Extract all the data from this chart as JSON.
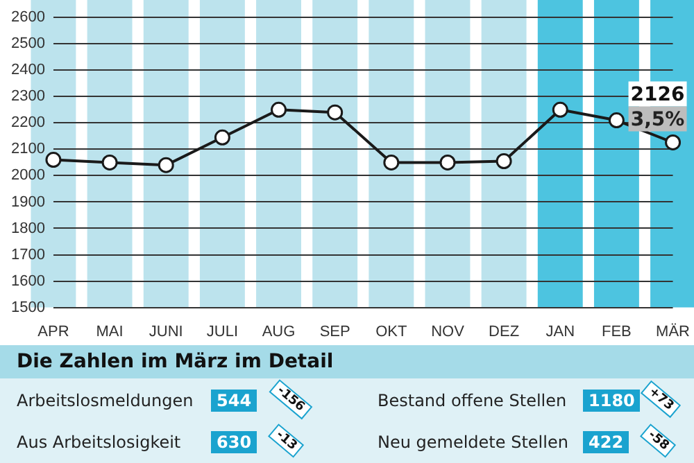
{
  "chart_data": {
    "type": "line",
    "categories": [
      "APR",
      "MAI",
      "JUNI",
      "JULI",
      "AUG",
      "SEP",
      "OKT",
      "NOV",
      "DEZ",
      "JAN",
      "FEB",
      "MÄR"
    ],
    "series": [
      {
        "color": "#1a1a1a",
        "values": [
          2060,
          2050,
          2040,
          2145,
          2250,
          2240,
          2050,
          2050,
          2055,
          2250,
          2210,
          2126
        ],
        "value_labels": [
          null,
          null,
          null,
          null,
          null,
          null,
          null,
          null,
          null,
          null,
          null,
          "2126"
        ]
      }
    ],
    "ylim": [
      1500,
      2600
    ],
    "yticks": [
      1500,
      1600,
      1700,
      1800,
      1900,
      2000,
      2100,
      2200,
      2300,
      2400,
      2500,
      2600
    ],
    "grid": "y",
    "legend": false,
    "marker": "circle",
    "line_style": "solid",
    "bands": [
      {
        "axis": "x",
        "from": "APR",
        "to": "APR",
        "color": "#bce3ed"
      },
      {
        "axis": "x",
        "from": "MAI",
        "to": "MAI",
        "color": "#bce3ed"
      },
      {
        "axis": "x",
        "from": "JUNI",
        "to": "JUNI",
        "color": "#bce3ed"
      },
      {
        "axis": "x",
        "from": "JULI",
        "to": "JULI",
        "color": "#bce3ed"
      },
      {
        "axis": "x",
        "from": "AUG",
        "to": "AUG",
        "color": "#bce3ed"
      },
      {
        "axis": "x",
        "from": "SEP",
        "to": "SEP",
        "color": "#bce3ed"
      },
      {
        "axis": "x",
        "from": "OKT",
        "to": "OKT",
        "color": "#bce3ed"
      },
      {
        "axis": "x",
        "from": "NOV",
        "to": "NOV",
        "color": "#bce3ed"
      },
      {
        "axis": "x",
        "from": "DEZ",
        "to": "DEZ",
        "color": "#bce3ed"
      },
      {
        "axis": "x",
        "from": "JAN",
        "to": "JAN",
        "color": "#4dc4e0"
      },
      {
        "axis": "x",
        "from": "FEB",
        "to": "FEB",
        "color": "#4dc4e0"
      },
      {
        "axis": "x",
        "from": "MÄR",
        "to": "MÄR",
        "color": "#4dc4e0"
      }
    ],
    "annotations": [
      {
        "text": "3,5%",
        "x": "MÄR",
        "y": 2126
      },
      "Die Zahlen im März im Detail",
      "Arbeitslosmeldungen",
      "544",
      "-156",
      "Bestand offene Stellen",
      "1180",
      "+73",
      "Aus Arbeitslosigkeit",
      "630",
      "-13",
      "Neu gemeldete Stellen",
      "422",
      "-58"
    ]
  }
}
